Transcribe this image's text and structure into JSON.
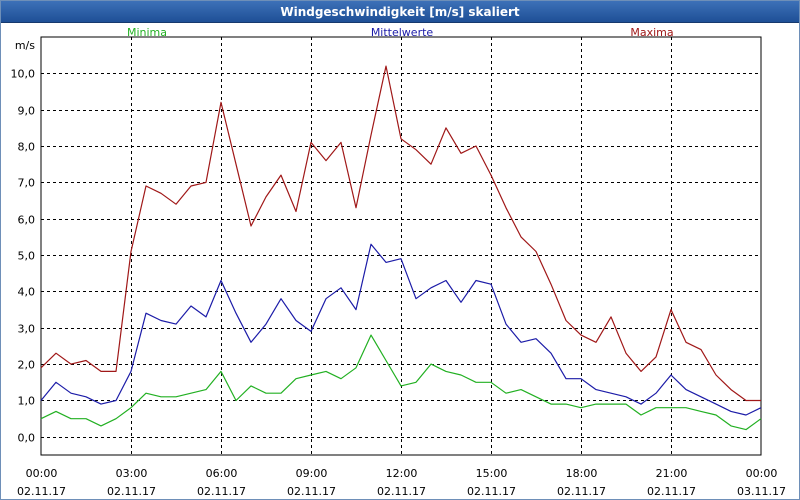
{
  "window": {
    "title": "Windgeschwindigkeit [m/s] skaliert"
  },
  "colors": {
    "minima": "#22b022",
    "mittelwerte": "#1c1ca8",
    "maxima": "#a01818",
    "grid": "#000000",
    "title_bar": "#2a5ea8"
  },
  "chart_data": {
    "type": "line",
    "title": "Windgeschwindigkeit [m/s] skaliert",
    "ylabel": "m/s",
    "xlabel": "",
    "ylim": [
      -0.5,
      11.0
    ],
    "xlim": [
      "02.11.17 00:00",
      "03.11.17 00:00"
    ],
    "yticks": [
      "0,0",
      "1,0",
      "2,0",
      "3,0",
      "4,0",
      "5,0",
      "6,0",
      "7,0",
      "8,0",
      "9,0",
      "10,0"
    ],
    "xticks": [
      {
        "time": "00:00",
        "date": "02.11.17"
      },
      {
        "time": "03:00",
        "date": "02.11.17"
      },
      {
        "time": "06:00",
        "date": "02.11.17"
      },
      {
        "time": "09:00",
        "date": "02.11.17"
      },
      {
        "time": "12:00",
        "date": "02.11.17"
      },
      {
        "time": "15:00",
        "date": "02.11.17"
      },
      {
        "time": "18:00",
        "date": "02.11.17"
      },
      {
        "time": "21:00",
        "date": "02.11.17"
      },
      {
        "time": "00:00",
        "date": "03.11.17"
      }
    ],
    "grid": true,
    "legend_position": "top",
    "x_hours": [
      0,
      0.5,
      1,
      1.5,
      2,
      2.5,
      3,
      3.5,
      4,
      4.5,
      5,
      5.5,
      6,
      6.5,
      7,
      7.5,
      8,
      8.5,
      9,
      9.5,
      10,
      10.5,
      11,
      11.5,
      12,
      12.5,
      13,
      13.5,
      14,
      14.5,
      15,
      15.5,
      16,
      16.5,
      17,
      17.5,
      18,
      18.5,
      19,
      19.5,
      20,
      20.5,
      21,
      21.5,
      22,
      22.5,
      23,
      23.5,
      24
    ],
    "series": [
      {
        "name": "Minima",
        "values": [
          0.5,
          0.7,
          0.5,
          0.5,
          0.3,
          0.5,
          0.8,
          1.2,
          1.1,
          1.1,
          1.2,
          1.3,
          1.8,
          1.0,
          1.4,
          1.2,
          1.2,
          1.6,
          1.7,
          1.8,
          1.6,
          1.9,
          2.8,
          2.1,
          1.4,
          1.5,
          2.0,
          1.8,
          1.7,
          1.5,
          1.5,
          1.2,
          1.3,
          1.1,
          0.9,
          0.9,
          0.8,
          0.9,
          0.9,
          0.9,
          0.6,
          0.8,
          0.8,
          0.8,
          0.7,
          0.6,
          0.3,
          0.2,
          0.5
        ]
      },
      {
        "name": "Mittelwerte",
        "values": [
          1.0,
          1.5,
          1.2,
          1.1,
          0.9,
          1.0,
          1.8,
          3.4,
          3.2,
          3.1,
          3.6,
          3.3,
          4.3,
          3.4,
          2.6,
          3.1,
          3.8,
          3.2,
          2.9,
          3.8,
          4.1,
          3.5,
          5.3,
          4.8,
          4.9,
          3.8,
          4.1,
          4.3,
          3.7,
          4.3,
          4.2,
          3.1,
          2.6,
          2.7,
          2.3,
          1.6,
          1.6,
          1.3,
          1.2,
          1.1,
          0.9,
          1.2,
          1.7,
          1.3,
          1.1,
          0.9,
          0.7,
          0.6,
          0.8
        ]
      },
      {
        "name": "Maxima",
        "values": [
          1.9,
          2.3,
          2.0,
          2.1,
          1.8,
          1.8,
          5.1,
          6.9,
          6.7,
          6.4,
          6.9,
          7.0,
          9.2,
          7.5,
          5.8,
          6.6,
          7.2,
          6.2,
          8.1,
          7.6,
          8.1,
          6.3,
          8.3,
          10.2,
          8.2,
          7.9,
          7.5,
          8.5,
          7.8,
          8.0,
          7.2,
          6.3,
          5.5,
          5.1,
          4.2,
          3.2,
          2.8,
          2.6,
          3.3,
          2.3,
          1.8,
          2.2,
          3.5,
          2.6,
          2.4,
          1.7,
          1.3,
          1.0,
          1.0
        ]
      }
    ]
  }
}
